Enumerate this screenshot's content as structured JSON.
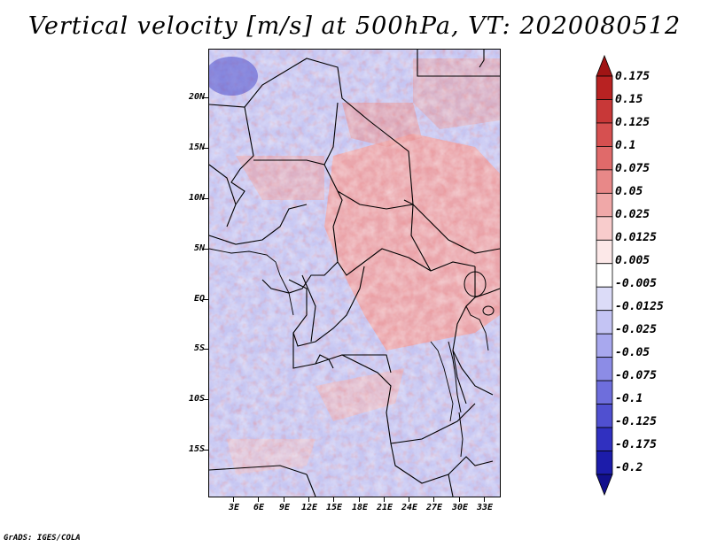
{
  "title": "Vertical velocity [m/s] at 500hPa, VT: 2020080512",
  "credit": "GrADS: IGES/COLA",
  "map": {
    "lat_labels": [
      "20N",
      "15N",
      "10N",
      "5N",
      "EQ",
      "5S",
      "10S",
      "15S"
    ],
    "lon_labels": [
      "3E",
      "6E",
      "9E",
      "12E",
      "15E",
      "18E",
      "21E",
      "24E",
      "27E",
      "30E",
      "33E"
    ]
  },
  "colorbar": {
    "levels": [
      "0.175",
      "0.15",
      "0.125",
      "0.1",
      "0.075",
      "0.05",
      "0.025",
      "0.0125",
      "0.005",
      "-0.005",
      "-0.0125",
      "-0.025",
      "-0.05",
      "-0.075",
      "-0.1",
      "-0.125",
      "-0.175",
      "-0.2"
    ],
    "colors": [
      "#a01414",
      "#b82222",
      "#c83838",
      "#d65050",
      "#e06a6a",
      "#e88888",
      "#f0a8a8",
      "#f8cccc",
      "#fce8e8",
      "#ffffff",
      "#dcdcf8",
      "#c4c4f4",
      "#a8a8ee",
      "#8c8ce6",
      "#6e6edc",
      "#5050d0",
      "#3030c0",
      "#1c1caa",
      "#12108c"
    ]
  }
}
